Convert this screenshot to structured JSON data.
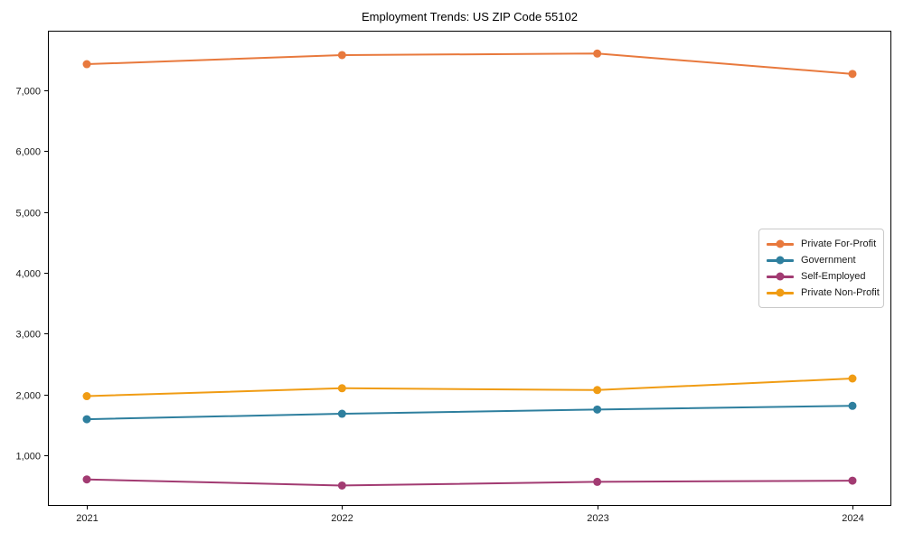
{
  "chart_data": {
    "type": "line",
    "title": "Employment Trends: US ZIP Code 55102",
    "xlabel": "",
    "ylabel": "",
    "x": [
      "2021",
      "2022",
      "2023",
      "2024"
    ],
    "series": [
      {
        "name": "Private For-Profit",
        "color": "#E8793D",
        "values": [
          7430,
          7580,
          7605,
          7270
        ]
      },
      {
        "name": "Government",
        "color": "#2E7F9E",
        "values": [
          1590,
          1680,
          1750,
          1810
        ]
      },
      {
        "name": "Self-Employed",
        "color": "#A23B72",
        "values": [
          600,
          500,
          560,
          580
        ]
      },
      {
        "name": "Private Non-Profit",
        "color": "#F09C14",
        "values": [
          1970,
          2100,
          2070,
          2260
        ]
      }
    ],
    "ytick_values": [
      1000,
      2000,
      3000,
      4000,
      5000,
      6000,
      7000
    ],
    "ytick_labels": [
      "1,000",
      "2,000",
      "3,000",
      "4,000",
      "5,000",
      "6,000",
      "7,000"
    ],
    "ylim": [
      130,
      7980
    ],
    "grid": false,
    "legend_position": "center right",
    "axes_box": true
  }
}
